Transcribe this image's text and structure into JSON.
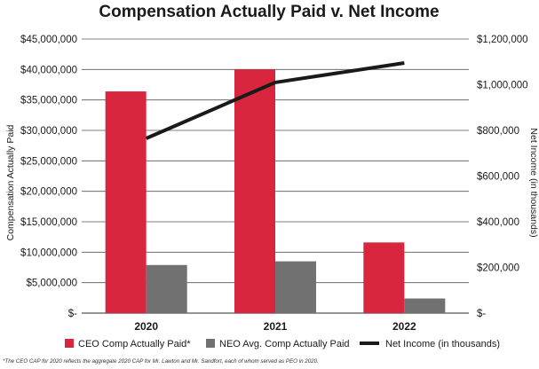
{
  "chart_data": {
    "type": "bar",
    "title": "Compensation Actually Paid v. Net Income",
    "categories": [
      "2020",
      "2021",
      "2022"
    ],
    "series": [
      {
        "name": "CEO Comp Actually Paid*",
        "type": "bar",
        "axis": "left",
        "color": "#d7263d",
        "values": [
          36400000,
          40000000,
          11600000
        ]
      },
      {
        "name": "NEO Avg. Comp Actually Paid",
        "type": "bar",
        "axis": "left",
        "color": "#717171",
        "values": [
          7900000,
          8500000,
          2400000
        ]
      },
      {
        "name": "Net Income (in thousands)",
        "type": "line",
        "axis": "right",
        "color": "#1a1a1a",
        "values": [
          765000,
          1010000,
          1095000
        ]
      }
    ],
    "ylabel": "Compensation Actually Paid",
    "y2label": "Net Income (in thousands)",
    "ylim": [
      0,
      45000000
    ],
    "y2lim": [
      0,
      1200000
    ],
    "yticks": [
      "$-",
      "$5,000,000",
      "$10,000,000",
      "$15,000,000",
      "$20,000,000",
      "$25,000,000",
      "$30,000,000",
      "$35,000,000",
      "$40,000,000",
      "$45,000,000"
    ],
    "y2ticks": [
      "$-",
      "$200,000",
      "$400,000",
      "$600,000",
      "$800,000",
      "$1,000,000",
      "$1,200,000"
    ],
    "grid": true,
    "legend_position": "bottom"
  },
  "footnote": "*The CEO CAP for 2020 reflects the aggregate 2020 CAP for Mr. Lawton and Mr. Sandfort, each of whom served as PEO in 2020."
}
